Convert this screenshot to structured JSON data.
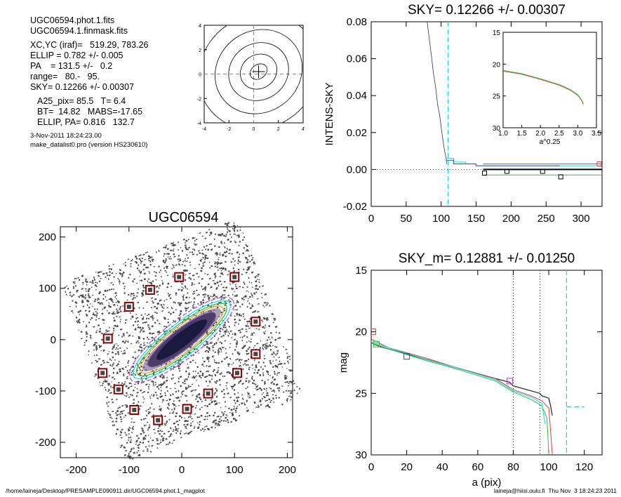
{
  "info": {
    "lines1": [
      "UGC06594.phot.1.fits",
      "UGC06594.1.finmask.fits"
    ],
    "lines2": [
      "XC,YC (iraf)=   519.29, 783.26",
      "ELLIP = 0.782 +/- 0.005",
      "PA    = 131.5 +/-   0.2",
      "range=   80.-   95.",
      "SKY= 0.12266 +/- 0.00307"
    ],
    "lines3": [
      "A25_pix= 85.5   T= 6.4",
      "BT=  14.82   MABS=-17.65",
      "ELLIP, PA= 0.816   132.7"
    ],
    "date": "3-Nov-2011 18:24:23.00",
    "program": "make_datalist0.pro (version HS230610)"
  },
  "footer": {
    "left": "/home/laineja/Desktop/PRESAMPLE090911.dir/UGC06594.phot.1_magplot",
    "right": "laineja@hiisi.oulu.fi  Thu Nov  3 18:24:23 2011"
  },
  "colors": {
    "grid_red": "#e06060",
    "cyan": "#00e0f0",
    "green": "#30c040",
    "red": "#e04040",
    "blue": "#2050c0",
    "magenta": "#c040c0",
    "dark_red": "#8b0000"
  },
  "chart_data": [
    {
      "type": "contour",
      "name": "center contour",
      "xlim": [
        -4,
        4
      ],
      "ylim": [
        -4,
        4
      ],
      "xticks": [
        -4,
        -2,
        0,
        2,
        4
      ],
      "yticks": [
        -4,
        -2,
        0,
        2,
        4
      ],
      "center": [
        0.4,
        0.2
      ]
    },
    {
      "type": "line",
      "title": "SKY= 0.12266 +/- 0.00307",
      "ylabel": "INTENS-SKY",
      "xlabel": "",
      "xlim": [
        0,
        330
      ],
      "ylim": [
        -0.02,
        0.08
      ],
      "xticks": [
        0,
        50,
        100,
        150,
        200,
        250,
        300
      ],
      "yticks": [
        "0.08",
        "0.06",
        "0.04",
        "0.02",
        "0.00",
        "-0.02"
      ],
      "vline_x": 110,
      "profile": {
        "x": [
          80,
          83,
          86,
          89,
          92,
          95,
          98,
          101,
          104,
          107,
          108
        ],
        "y": [
          0.08,
          0.071,
          0.062,
          0.052,
          0.045,
          0.035,
          0.029,
          0.02,
          0.012,
          0.006,
          0.003
        ]
      },
      "steps": [
        {
          "color": "cyan",
          "x": [
            108,
            118,
            118,
            135,
            135,
            150,
            150,
            165,
            165,
            330
          ],
          "y": [
            0.006,
            0.006,
            0.004,
            0.004,
            0.003,
            0.003,
            0.002,
            0.002,
            0.002,
            0.002
          ]
        },
        {
          "color": "blue",
          "x": [
            108,
            118,
            118,
            150,
            150,
            270
          ],
          "y": [
            0.005,
            0.005,
            0.003,
            0.003,
            0.002,
            0.002
          ]
        },
        {
          "color": "red",
          "x": [
            160,
            330
          ],
          "y": [
            0.003,
            0.003
          ]
        },
        {
          "color": "green",
          "x": [
            160,
            330
          ],
          "y": [
            -0.003,
            -0.003
          ]
        },
        {
          "color": "black",
          "x": [
            160,
            330
          ],
          "y": [
            0.0,
            0.0
          ]
        }
      ],
      "markers": [
        {
          "x": 162,
          "y": -0.002,
          "color": "black"
        },
        {
          "x": 194,
          "y": -0.001,
          "color": "black"
        },
        {
          "x": 245,
          "y": -0.001,
          "color": "black"
        },
        {
          "x": 271,
          "y": -0.004,
          "color": "black"
        },
        {
          "x": 326,
          "y": 0.003,
          "color": "red"
        }
      ],
      "inset": {
        "xlabel": "a^0.25",
        "xlim": [
          1.0,
          3.5
        ],
        "ylim": [
          15,
          30
        ],
        "xticks": [
          "1.0",
          "1.5",
          "2.0",
          "2.5",
          "3.0",
          "3.5"
        ],
        "yticks": [
          "15",
          "20",
          "25",
          "30"
        ],
        "curve": {
          "x": [
            1.0,
            1.5,
            2.0,
            2.5,
            2.8,
            3.0,
            3.1,
            3.15
          ],
          "y": [
            21.0,
            21.5,
            22.3,
            23.2,
            24.0,
            24.8,
            25.6,
            26.2
          ]
        }
      }
    },
    {
      "type": "image",
      "title": "UGC06594",
      "xlim": [
        -230,
        210
      ],
      "ylim": [
        -230,
        220
      ],
      "xticks": [
        -200,
        -100,
        0,
        100,
        200
      ],
      "yticks": [
        200,
        100,
        0,
        -100,
        -200
      ],
      "galaxy": {
        "center": [
          0,
          0
        ],
        "pa_deg": 131.5,
        "ellip": 0.782
      },
      "masked_stars": [
        [
          -5,
          122
        ],
        [
          -60,
          97
        ],
        [
          -100,
          64
        ],
        [
          -140,
          2
        ],
        [
          -150,
          -65
        ],
        [
          -120,
          -97
        ],
        [
          -90,
          -137
        ],
        [
          -45,
          -157
        ],
        [
          10,
          -135
        ],
        [
          50,
          -105
        ],
        [
          105,
          -65
        ],
        [
          140,
          -28
        ],
        [
          140,
          35
        ],
        [
          100,
          122
        ]
      ]
    },
    {
      "type": "line",
      "title": "SKY_m=  0.12881 +/- 0.01250",
      "xlabel": "a (pix)",
      "ylabel": "mag",
      "xlim": [
        0,
        130
      ],
      "ylim": [
        15,
        30
      ],
      "y_inverted": true,
      "xticks": [
        0,
        20,
        40,
        60,
        80,
        100,
        120
      ],
      "yticks": [
        15,
        20,
        25,
        30
      ],
      "vlines_dotted": [
        80,
        95
      ],
      "vline_dashed": 110,
      "cyan_tail": {
        "x": [
          110,
          120
        ],
        "y": [
          26.1,
          26.1
        ]
      },
      "series": [
        {
          "color": "dark",
          "x": [
            0,
            5,
            10,
            20,
            30,
            40,
            50,
            60,
            70,
            78,
            80,
            85,
            90,
            95,
            96,
            100,
            101,
            102
          ],
          "y": [
            20.9,
            21.2,
            21.4,
            21.8,
            22.2,
            22.6,
            23.0,
            23.4,
            23.8,
            24.1,
            24.4,
            24.6,
            24.8,
            25.0,
            25.2,
            25.4,
            26.0,
            26.8
          ]
        },
        {
          "color": "red",
          "x": [
            0,
            10,
            30,
            50,
            70,
            80,
            90,
            96,
            100,
            101,
            102
          ],
          "y": [
            20.6,
            21.3,
            22.1,
            23.0,
            23.8,
            24.7,
            25.2,
            25.6,
            26.2,
            28.0,
            30
          ]
        },
        {
          "color": "green",
          "x": [
            0,
            10,
            30,
            50,
            70,
            80,
            90,
            96,
            99,
            100
          ],
          "y": [
            20.9,
            21.4,
            22.3,
            23.1,
            24.0,
            24.9,
            25.5,
            26.0,
            27.0,
            30
          ]
        },
        {
          "color": "cyan",
          "x": [
            0,
            10,
            30,
            50,
            70,
            80,
            90,
            96,
            98
          ],
          "y": [
            20.8,
            21.3,
            22.2,
            23.0,
            23.9,
            24.8,
            25.3,
            25.8,
            27.5
          ]
        }
      ],
      "markers": [
        {
          "x": 1,
          "y": 20.0,
          "color": "red"
        },
        {
          "x": 3,
          "y": 21.0,
          "color": "green"
        },
        {
          "x": 20,
          "y": 22.0,
          "color": "blue"
        },
        {
          "x": 78,
          "y": 24.0,
          "color": "magenta"
        }
      ]
    }
  ]
}
